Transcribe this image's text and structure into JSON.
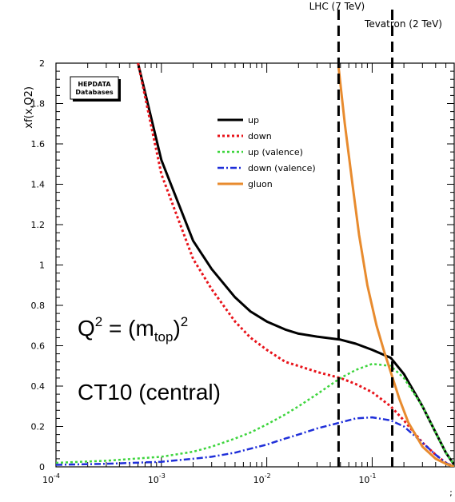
{
  "chart_data": {
    "type": "line",
    "ylabel": "xf(x,Q2)",
    "xlabel": "",
    "x_scale": "log",
    "xlim": [
      0.0001,
      0.6
    ],
    "ylim": [
      0,
      2
    ],
    "x_ticks": [
      {
        "value": 0.0001,
        "base": "10",
        "exp": "-4"
      },
      {
        "value": 0.001,
        "base": "10",
        "exp": "-3"
      },
      {
        "value": 0.01,
        "base": "10",
        "exp": "-2"
      },
      {
        "value": 0.1,
        "base": "10",
        "exp": "-1"
      }
    ],
    "y_ticks": [
      "0",
      "0.2",
      "0.4",
      "0.6",
      "0.8",
      "1",
      "1.2",
      "1.4",
      "1.6",
      "1.8",
      "2"
    ],
    "legend_position": "top-center",
    "series": [
      {
        "name": "up",
        "color": "#000000",
        "style": "solid",
        "width": 3,
        "x": [
          0.0006,
          0.001,
          0.002,
          0.003,
          0.005,
          0.007,
          0.01,
          0.015,
          0.02,
          0.03,
          0.05,
          0.07,
          0.1,
          0.15,
          0.2,
          0.3,
          0.4,
          0.5,
          0.6
        ],
        "y": [
          2.0,
          1.52,
          1.12,
          0.98,
          0.84,
          0.77,
          0.72,
          0.68,
          0.66,
          0.645,
          0.63,
          0.61,
          0.58,
          0.54,
          0.46,
          0.3,
          0.17,
          0.07,
          0.01
        ]
      },
      {
        "name": "down",
        "color": "#e8141b",
        "style": "dot",
        "width": 3,
        "x": [
          0.0006,
          0.001,
          0.002,
          0.003,
          0.005,
          0.007,
          0.01,
          0.015,
          0.02,
          0.03,
          0.05,
          0.07,
          0.1,
          0.15,
          0.2,
          0.3,
          0.4,
          0.5,
          0.6
        ],
        "y": [
          2.0,
          1.45,
          1.03,
          0.88,
          0.72,
          0.64,
          0.58,
          0.52,
          0.5,
          0.47,
          0.44,
          0.41,
          0.37,
          0.3,
          0.23,
          0.12,
          0.06,
          0.02,
          0.0
        ]
      },
      {
        "name": "up (valence)",
        "color": "#3dd53d",
        "style": "dot",
        "width": 2.5,
        "x": [
          0.0001,
          0.0003,
          0.001,
          0.002,
          0.003,
          0.005,
          0.007,
          0.01,
          0.015,
          0.02,
          0.03,
          0.05,
          0.07,
          0.1,
          0.15,
          0.2,
          0.3,
          0.4,
          0.5,
          0.6
        ],
        "y": [
          0.02,
          0.03,
          0.05,
          0.075,
          0.1,
          0.14,
          0.17,
          0.21,
          0.26,
          0.3,
          0.36,
          0.44,
          0.48,
          0.51,
          0.5,
          0.44,
          0.3,
          0.17,
          0.07,
          0.01
        ]
      },
      {
        "name": "down (valence)",
        "color": "#1f2fd9",
        "style": "dashdot",
        "width": 2.5,
        "x": [
          0.0001,
          0.0003,
          0.001,
          0.002,
          0.003,
          0.005,
          0.007,
          0.01,
          0.015,
          0.02,
          0.03,
          0.05,
          0.07,
          0.1,
          0.15,
          0.2,
          0.3,
          0.4,
          0.5,
          0.6
        ],
        "y": [
          0.01,
          0.015,
          0.025,
          0.04,
          0.05,
          0.07,
          0.09,
          0.11,
          0.14,
          0.16,
          0.19,
          0.22,
          0.24,
          0.245,
          0.23,
          0.2,
          0.12,
          0.06,
          0.02,
          0.0
        ]
      },
      {
        "name": "gluon",
        "color": "#e88b2e",
        "style": "solid",
        "width": 3,
        "x": [
          0.048,
          0.055,
          0.065,
          0.075,
          0.09,
          0.11,
          0.13,
          0.15,
          0.18,
          0.22,
          0.3,
          0.4,
          0.5,
          0.6
        ],
        "y": [
          1.98,
          1.7,
          1.4,
          1.15,
          0.9,
          0.7,
          0.57,
          0.47,
          0.34,
          0.22,
          0.1,
          0.04,
          0.015,
          0.0
        ]
      }
    ],
    "vertical_lines": [
      {
        "label": "LHC (7 TeV)",
        "x": 0.048
      },
      {
        "label": "Tevatron (2 TeV)",
        "x": 0.155
      }
    ],
    "annotations": {
      "q2_prefix": "Q",
      "q2_sup": "2",
      "q2_mid": " = (m",
      "q2_sub": "top",
      "q2_close": ")",
      "q2_sup2": "2",
      "pdf_set": "CT10 (central)",
      "logo_line1": "HEPDATA",
      "logo_line2": "Databases",
      "corner_mark": ";"
    }
  }
}
